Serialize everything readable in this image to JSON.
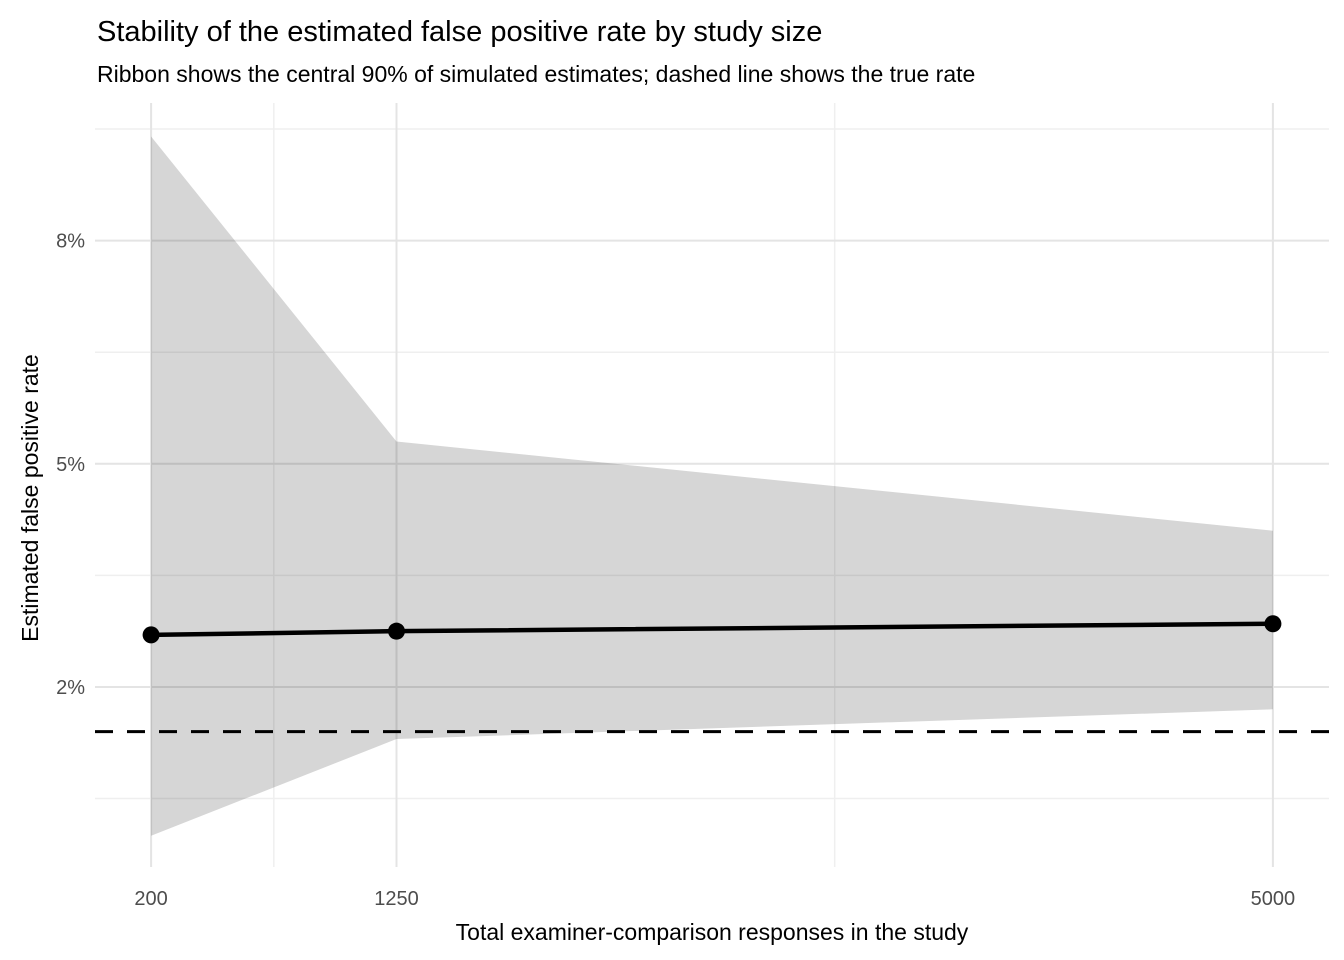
{
  "chart_data": {
    "type": "line",
    "title": "Stability of the estimated false positive rate by study size",
    "subtitle": "Ribbon shows the central 90% of simulated estimates; dashed line shows the true rate",
    "xlabel": "Total examiner-comparison responses in the study",
    "ylabel": "Estimated false positive rate",
    "x": [
      200,
      1250,
      5000
    ],
    "series": [
      {
        "name": "median_estimate",
        "values": [
          2.7,
          2.75,
          2.85
        ]
      },
      {
        "name": "ribbon_lower_5th",
        "values": [
          0.0,
          1.3,
          1.7
        ]
      },
      {
        "name": "ribbon_upper_95th",
        "values": [
          9.4,
          5.3,
          4.1
        ]
      }
    ],
    "true_rate": 1.4,
    "x_ticks": {
      "values": [
        200,
        1250,
        5000
      ],
      "labels": [
        "200",
        "1250",
        "5000"
      ]
    },
    "y_ticks": {
      "values": [
        2,
        5,
        8
      ],
      "labels": [
        "2%",
        "5%",
        "8%"
      ]
    },
    "x_minor": [
      725,
      3125
    ],
    "y_minor": [
      0.5,
      3.5,
      6.5,
      9.5
    ],
    "xlim": [
      -40,
      5240
    ],
    "ylim": [
      -0.42,
      9.85
    ],
    "grid": true,
    "legend": "none"
  },
  "colors": {
    "background": "#FFFFFF",
    "ribbon": "#D6D6D6",
    "median_line": "#000000",
    "true_rate_line": "#000000",
    "grid_major": "#E4E4E4",
    "grid_minor": "#EFEFEF",
    "tick_label": "#4D4D4D",
    "text": "#000000"
  }
}
